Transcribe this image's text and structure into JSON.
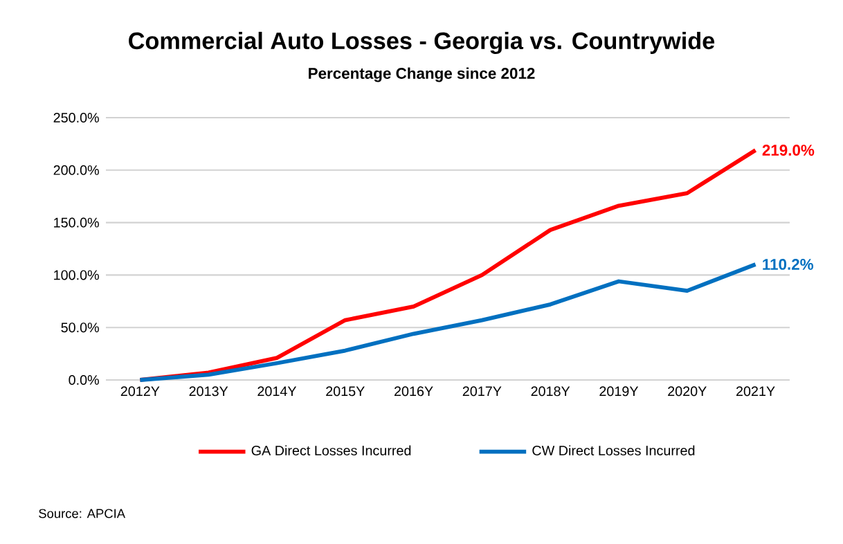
{
  "chart_data": {
    "type": "line",
    "title": "Commercial Auto Losses - Georgia vs. Countrywide",
    "subtitle": "Percentage Change since 2012",
    "categories": [
      "2012Y",
      "2013Y",
      "2014Y",
      "2015Y",
      "2016Y",
      "2017Y",
      "2018Y",
      "2019Y",
      "2020Y",
      "2021Y"
    ],
    "series": [
      {
        "name": "GA Direct Losses Incurred",
        "color": "#ff0000",
        "values": [
          0,
          7,
          21,
          57,
          70,
          100,
          143,
          166,
          178,
          219.0
        ],
        "value_labels": [
          null,
          null,
          null,
          null,
          null,
          null,
          null,
          null,
          null,
          "219.0%"
        ]
      },
      {
        "name": "CW Direct Losses Incurred",
        "color": "#0070c0",
        "values": [
          0,
          5,
          16,
          28,
          44,
          57,
          72,
          94,
          85,
          110.2
        ],
        "value_labels": [
          null,
          null,
          null,
          null,
          null,
          null,
          null,
          null,
          null,
          "110.2%"
        ]
      }
    ],
    "ylim": [
      0,
      250
    ],
    "yticks": [
      {
        "value": 0,
        "label": "0.0%"
      },
      {
        "value": 50,
        "label": "50.0%"
      },
      {
        "value": 100,
        "label": "100.0%"
      },
      {
        "value": 150,
        "label": "150.0%"
      },
      {
        "value": 200,
        "label": "200.0%"
      },
      {
        "value": 250,
        "label": "250.0%"
      }
    ],
    "grid": "y",
    "legend": "bottom",
    "marker": "none",
    "line_style": "solid",
    "annotations": [
      "Source: APCIA"
    ]
  }
}
